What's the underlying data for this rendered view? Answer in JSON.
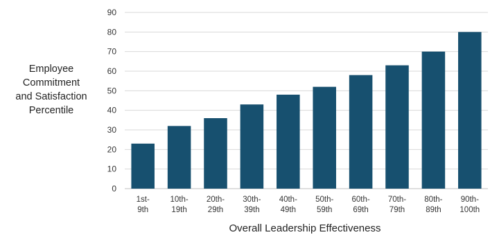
{
  "chart_data": {
    "type": "bar",
    "categories": [
      [
        "1st-",
        "9th"
      ],
      [
        "10th-",
        "19th"
      ],
      [
        "20th-",
        "29th"
      ],
      [
        "30th-",
        "39th"
      ],
      [
        "40th-",
        "49th"
      ],
      [
        "50th-",
        "59th"
      ],
      [
        "60th-",
        "69th"
      ],
      [
        "70th-",
        "79th"
      ],
      [
        "80th-",
        "89th"
      ],
      [
        "90th-",
        "100th"
      ]
    ],
    "values": [
      23,
      32,
      36,
      43,
      48,
      52,
      58,
      63,
      70,
      80
    ],
    "ylim": [
      0,
      90
    ],
    "yticks": [
      0,
      10,
      20,
      30,
      40,
      50,
      60,
      70,
      80,
      90
    ],
    "ylabel_lines": [
      "Employee",
      "Commitment",
      "and Satisfaction",
      "Percentile"
    ],
    "xlabel": "Overall Leadership Effectiveness",
    "grid": true,
    "legend": "none",
    "bar_color": "#17506f",
    "grid_color": "#d9d9d9"
  }
}
